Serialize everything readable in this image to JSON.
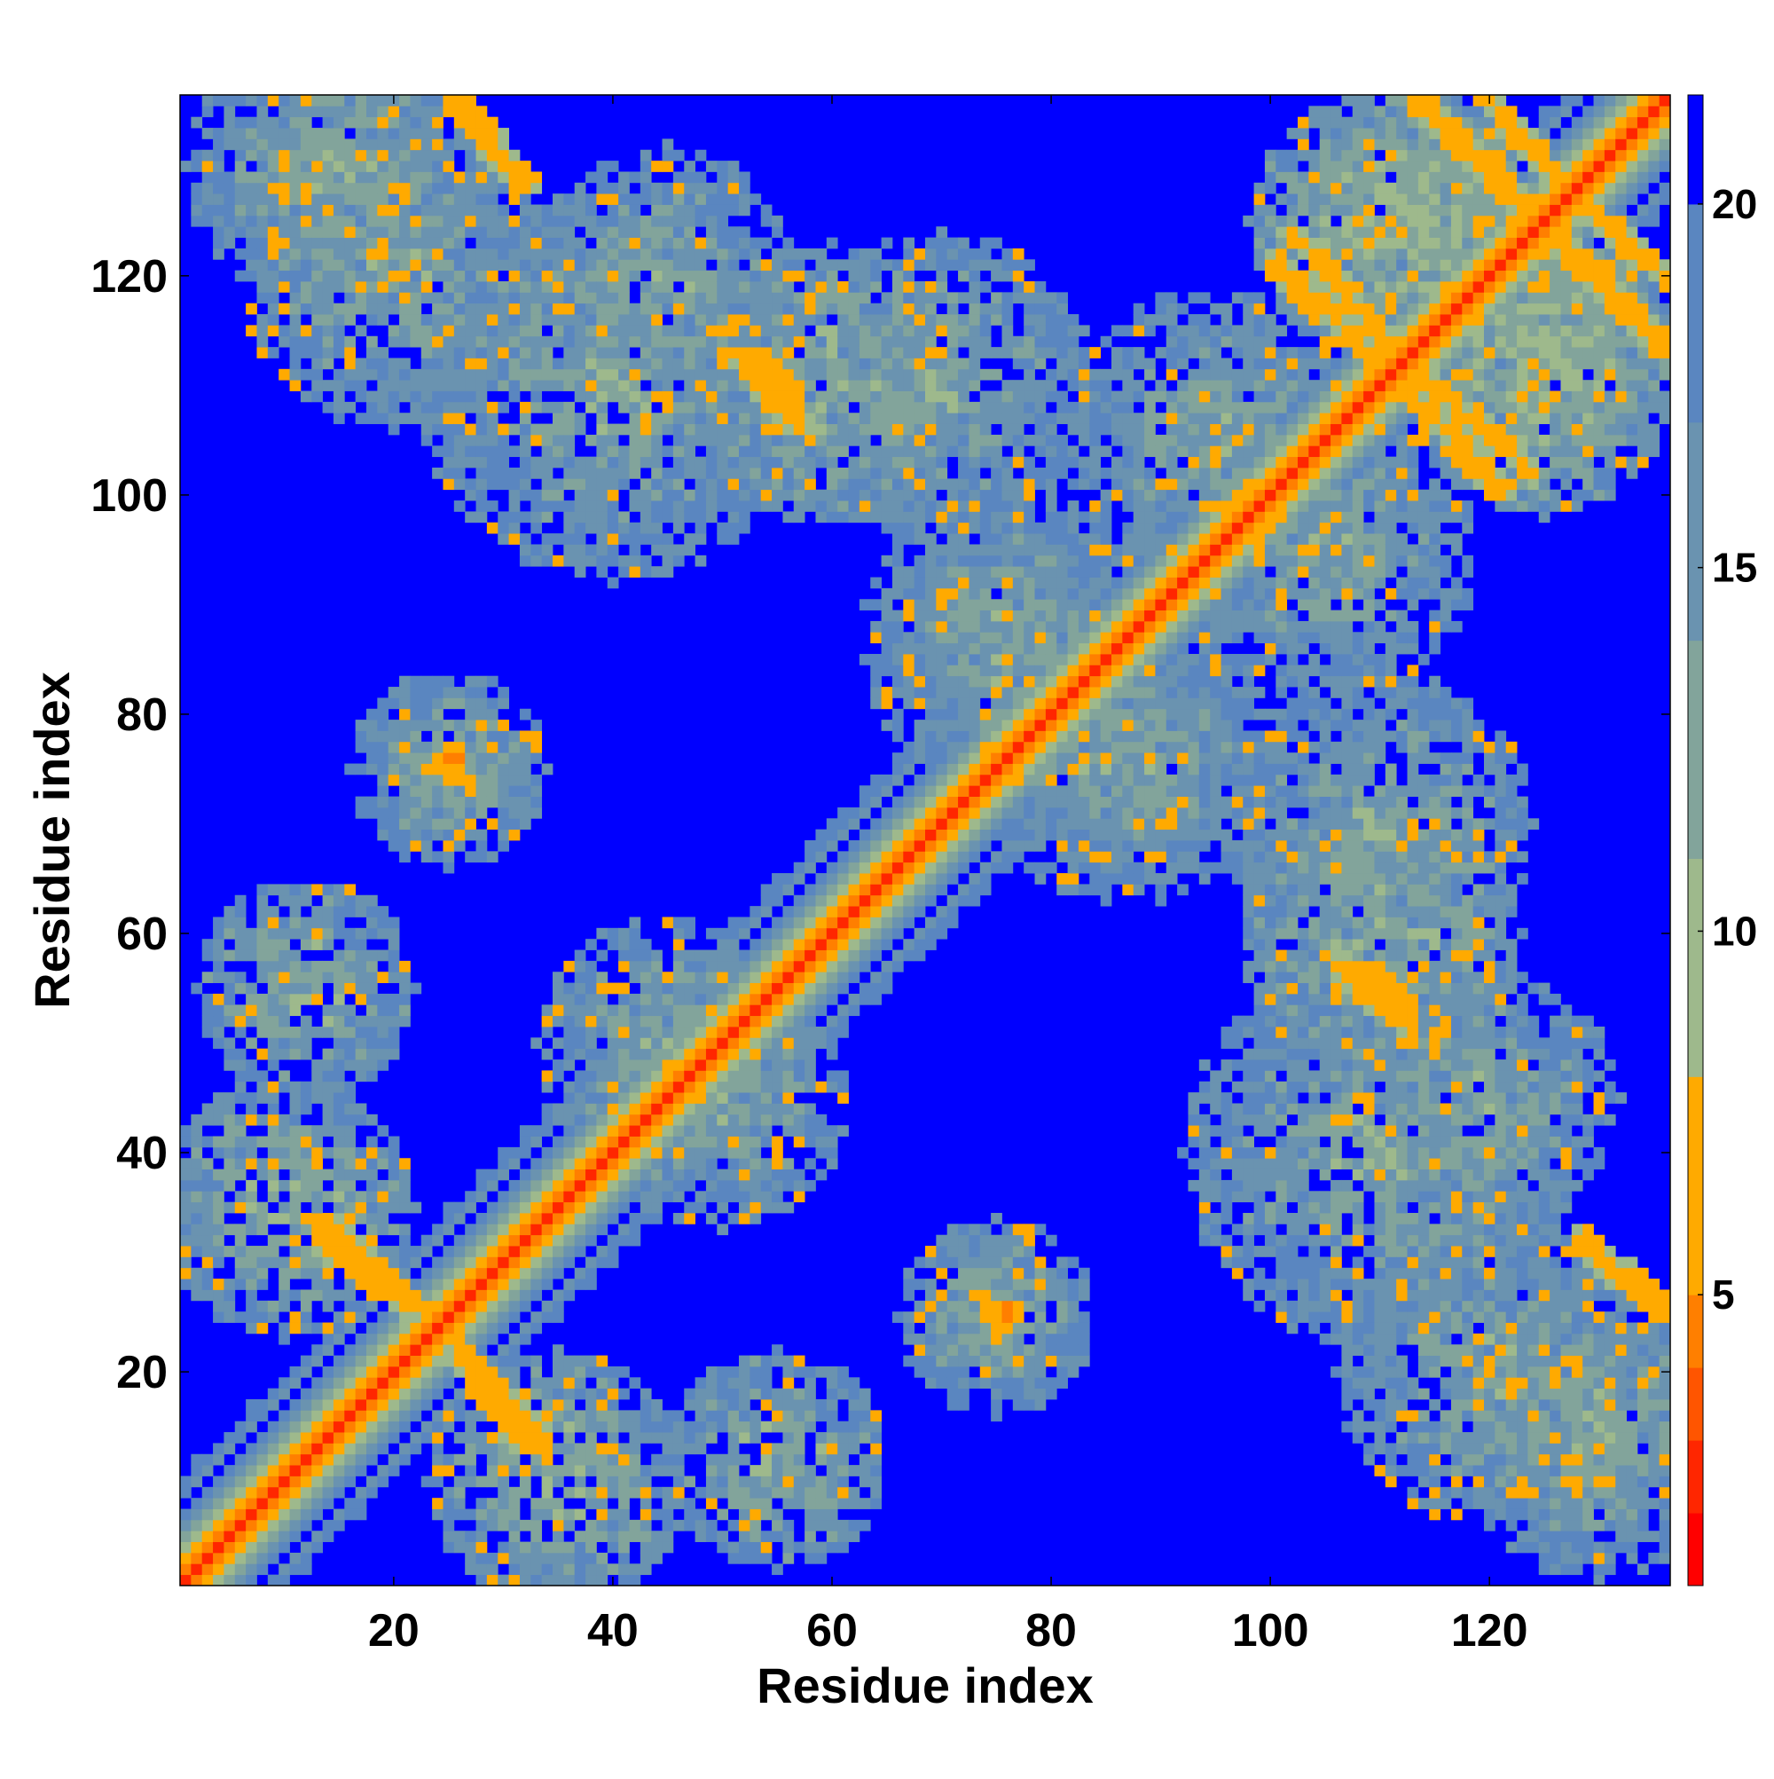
{
  "chart_data": {
    "type": "heatmap",
    "title": "",
    "xlabel": "Residue index",
    "ylabel": "Residue index",
    "xlim": [
      1,
      136
    ],
    "ylim": [
      1,
      136
    ],
    "n_residues": 136,
    "xticks": [
      20,
      40,
      60,
      80,
      100,
      120
    ],
    "yticks": [
      20,
      40,
      60,
      80,
      100,
      120
    ],
    "colorbar": {
      "ticks": [
        5,
        10,
        15,
        20
      ],
      "range": [
        1,
        21.5
      ],
      "colors": [
        "#ff0000",
        "#ff2600",
        "#ff5500",
        "#ff7f00",
        "#ffaa00",
        "#9eb98c",
        "#82a49b",
        "#6a93b0",
        "#5a86c0",
        "#0000ff"
      ],
      "thresholds": [
        2,
        3,
        4,
        5,
        8,
        11,
        14,
        17,
        20
      ]
    },
    "structure": {
      "main_diagonal_band": "values rise from ~2 on the diagonal to ~20 at a distance of 7 residues",
      "contact_segments": [
        {
          "x": [
            26,
            32
          ],
          "y": [
            136,
            128
          ],
          "value": 6
        },
        {
          "x": [
            13,
            22
          ],
          "y": [
            34,
            26
          ],
          "value": 6
        },
        {
          "x": [
            26,
            32
          ],
          "y": [
            21,
            13
          ],
          "value": 6
        },
        {
          "x": [
            102,
            112
          ],
          "y": [
            124,
            112
          ],
          "value": 6
        },
        {
          "x": [
            112,
            121
          ],
          "y": [
            110,
            100
          ],
          "value": 6
        },
        {
          "x": [
            120,
            128
          ],
          "y": [
            136,
            126
          ],
          "value": 6
        },
        {
          "x": [
            125,
            136
          ],
          "y": [
            124,
            113
          ],
          "value": 6
        },
        {
          "x": [
            129,
            136
          ],
          "y": [
            31,
            25
          ],
          "value": 6
        },
        {
          "x": [
            51,
            57
          ],
          "y": [
            113,
            106
          ],
          "value": 6
        },
        {
          "x": [
            109,
            112
          ],
          "y": [
            57,
            53
          ],
          "value": 5
        },
        {
          "x": [
            75,
            76
          ],
          "y": [
            26,
            25
          ],
          "value": 4
        },
        {
          "x": [
            24,
            26
          ],
          "y": [
            75,
            74
          ],
          "value": 5
        }
      ],
      "patches": [
        {
          "center": [
            25,
            75
          ],
          "radius": 7,
          "value": 12
        },
        {
          "center": [
            75,
            25
          ],
          "radius": 9,
          "value": 13
        },
        {
          "center": [
            12,
            55
          ],
          "radius": 10,
          "value": 12
        },
        {
          "center": [
            45,
            50
          ],
          "radius": 12,
          "value": 13
        },
        {
          "center": [
            110,
            60
          ],
          "radius": 13,
          "value": 12
        },
        {
          "center": [
            120,
            45
          ],
          "radius": 12,
          "value": 13
        },
        {
          "center": [
            40,
            110
          ],
          "radius": 18,
          "value": 13
        },
        {
          "center": [
            70,
            110
          ],
          "radius": 14,
          "value": 13
        },
        {
          "center": [
            35,
            10
          ],
          "radius": 12,
          "value": 12
        },
        {
          "center": [
            120,
            20
          ],
          "radius": 14,
          "value": 13
        },
        {
          "center": [
            85,
            75
          ],
          "radius": 12,
          "value": 13
        },
        {
          "center": [
            75,
            90
          ],
          "radius": 12,
          "value": 14
        },
        {
          "center": [
            105,
            95
          ],
          "radius": 14,
          "value": 13
        },
        {
          "center": [
            115,
            125
          ],
          "radius": 12,
          "value": 11
        },
        {
          "center": [
            125,
            110
          ],
          "radius": 12,
          "value": 11
        },
        {
          "center": [
            15,
            130
          ],
          "radius": 14,
          "value": 13
        },
        {
          "center": [
            130,
            15
          ],
          "radius": 10,
          "value": 13
        }
      ],
      "background_value": 21
    }
  }
}
